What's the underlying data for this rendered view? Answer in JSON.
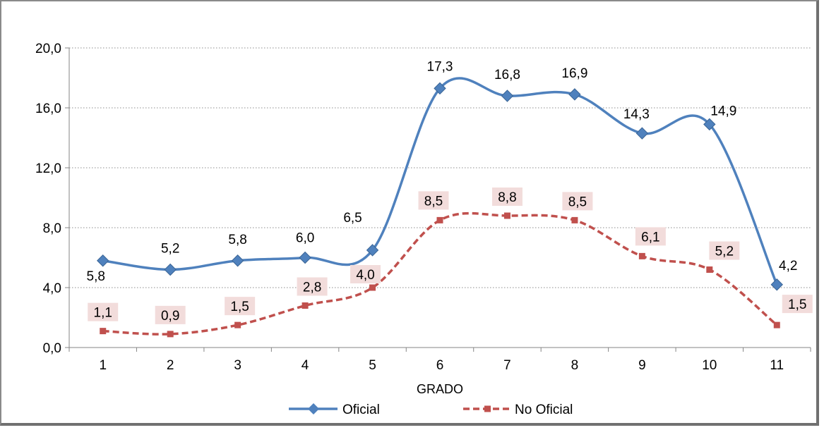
{
  "chart_data": {
    "type": "line",
    "title": "",
    "xlabel": "GRADO",
    "ylabel": "",
    "categories": [
      "1",
      "2",
      "3",
      "4",
      "5",
      "6",
      "7",
      "8",
      "9",
      "10",
      "11"
    ],
    "y_tick_labels": [
      "0,0",
      "4,0",
      "8,0",
      "12,0",
      "16,0",
      "20,0"
    ],
    "ylim": [
      0,
      20
    ],
    "grid": "horizontal dotted",
    "legend_position": "bottom",
    "series": [
      {
        "name": "Oficial",
        "color": "#4f81bd",
        "marker": "diamond",
        "line": "solid",
        "values": [
          5.8,
          5.2,
          5.8,
          6.0,
          6.5,
          17.3,
          16.8,
          16.9,
          14.3,
          14.9,
          4.2
        ],
        "labels": [
          "5,8",
          "5,2",
          "5,8",
          "6,0",
          "6,5",
          "17,3",
          "16,8",
          "16,9",
          "14,3",
          "14,9",
          "4,2"
        ]
      },
      {
        "name": "No Oficial",
        "color": "#c0504d",
        "marker": "square",
        "line": "dashed",
        "values": [
          1.1,
          0.9,
          1.5,
          2.8,
          4.0,
          8.5,
          8.8,
          8.5,
          6.1,
          5.2,
          1.5
        ],
        "labels": [
          "1,1",
          "0,9",
          "1,5",
          "2,8",
          "4,0",
          "8,5",
          "8,8",
          "8,5",
          "6,1",
          "5,2",
          "1,5"
        ]
      }
    ]
  }
}
